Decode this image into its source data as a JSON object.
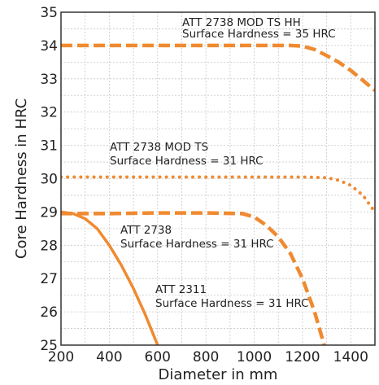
{
  "chart_data": {
    "type": "line",
    "title": "",
    "xlabel": "Diameter in mm",
    "ylabel": "Core Hardness in HRC",
    "xlim": [
      200,
      1500
    ],
    "ylim": [
      25,
      35
    ],
    "x_ticks": [
      200,
      400,
      600,
      800,
      1000,
      1200,
      1400
    ],
    "y_ticks": [
      25,
      26,
      27,
      28,
      29,
      30,
      31,
      32,
      33,
      34,
      35
    ],
    "grid": true,
    "line_color": "#f08a30",
    "series": [
      {
        "name": "ATT 2738 MOD TS HH",
        "style": "dashed",
        "annotation": [
          "ATT 2738 MOD TS HH",
          "Surface Hardness = 35 HRC"
        ],
        "x": [
          200,
          400,
          600,
          800,
          1000,
          1150,
          1200,
          1250,
          1300,
          1350,
          1400,
          1450,
          1500
        ],
        "y": [
          34.0,
          34.0,
          34.0,
          34.0,
          34.0,
          34.0,
          33.98,
          33.88,
          33.7,
          33.5,
          33.25,
          32.95,
          32.65
        ]
      },
      {
        "name": "ATT 2738 MOD TS",
        "style": "dotted",
        "annotation": [
          "ATT 2738 MOD TS",
          "Surface Hardness = 31 HRC"
        ],
        "x": [
          200,
          400,
          600,
          800,
          1000,
          1200,
          1300,
          1350,
          1400,
          1450,
          1500
        ],
        "y": [
          30.05,
          30.05,
          30.05,
          30.05,
          30.05,
          30.05,
          30.03,
          29.95,
          29.8,
          29.5,
          29.0
        ]
      },
      {
        "name": "ATT 2738",
        "style": "dashed",
        "annotation": [
          "ATT 2738",
          "Surface Hardness = 31 HRC"
        ],
        "x": [
          200,
          400,
          600,
          800,
          950,
          1000,
          1050,
          1100,
          1150,
          1200,
          1250,
          1290
        ],
        "y": [
          28.95,
          28.95,
          28.97,
          28.97,
          28.95,
          28.85,
          28.6,
          28.25,
          27.75,
          27.0,
          26.0,
          25.0
        ]
      },
      {
        "name": "ATT 2311",
        "style": "solid",
        "annotation": [
          "ATT 2311",
          "Surface Hardness = 31 HRC"
        ],
        "x": [
          200,
          250,
          300,
          350,
          400,
          450,
          500,
          550,
          600
        ],
        "y": [
          29.0,
          28.95,
          28.8,
          28.5,
          28.0,
          27.4,
          26.7,
          25.9,
          25.0
        ]
      }
    ]
  }
}
